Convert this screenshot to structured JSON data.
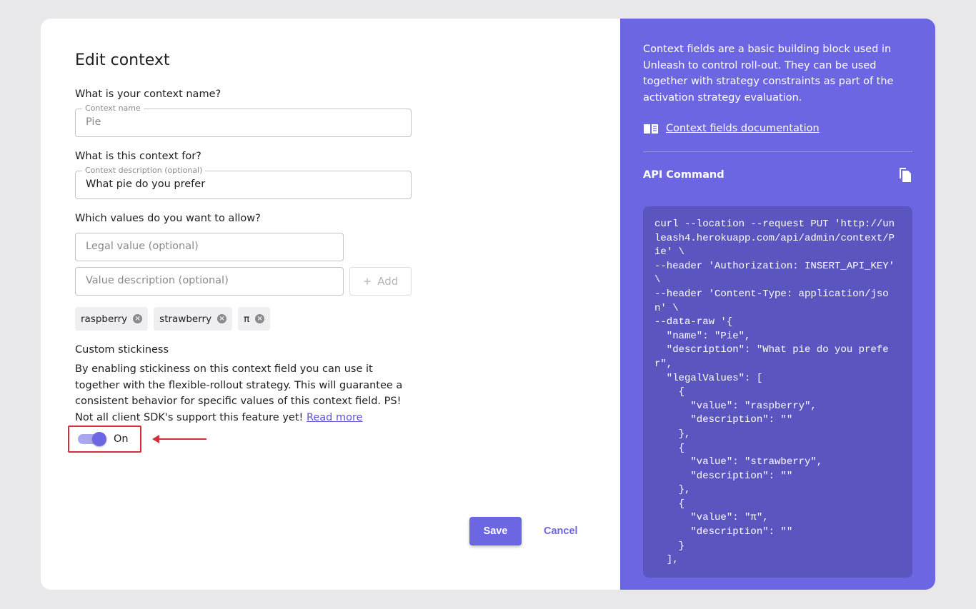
{
  "title": "Edit context",
  "name_question": "What is your context name?",
  "name_field": {
    "label": "Context name",
    "value": "Pie"
  },
  "purpose_question": "What is this context for?",
  "description_field": {
    "label": "Context description (optional)",
    "value": "What pie do you prefer"
  },
  "values_question": "Which values do you want to allow?",
  "legal_value_placeholder": "Legal value (optional)",
  "value_description_placeholder": "Value description (optional)",
  "add_label": "Add",
  "chips": [
    "raspberry",
    "strawberry",
    "π"
  ],
  "stickiness": {
    "title": "Custom stickiness",
    "text": "By enabling stickiness on this context field you can use it together with the flexible-rollout strategy. This will guarantee a consistent behavior for specific values of this context field. PS! Not all client SDK's support this feature yet!",
    "link": "Read more",
    "toggle_label": "On",
    "enabled": true
  },
  "save_label": "Save",
  "cancel_label": "Cancel",
  "sidebar": {
    "description": "Context fields are a basic building block used in Unleash to control roll-out. They can be used together with strategy constraints as part of the activation strategy evaluation.",
    "doc_link": "Context fields documentation",
    "api_title": "API Command",
    "code_lines": [
      "curl --location --request PUT 'http://un",
      "leash4.herokuapp.com/api/admin/context/P",
      "ie' \\",
      "--header 'Authorization: INSERT_API_KEY'",
      "\\",
      "--header 'Content-Type: application/jso",
      "n' \\",
      "--data-raw '{",
      "  \"name\": \"Pie\",",
      "  \"description\": \"What pie do you prefe",
      "r\",",
      "  \"legalValues\": [",
      "    {",
      "      \"value\": \"raspberry\",",
      "      \"description\": \"\"",
      "    },",
      "    {",
      "      \"value\": \"strawberry\",",
      "      \"description\": \"\"",
      "    },",
      "    {",
      "      \"value\": \"π\",",
      "      \"description\": \"\"",
      "    }",
      "  ],"
    ]
  },
  "colors": {
    "accent": "#6c66e3",
    "code_bg": "#5b55c0",
    "highlight": "#d32f3a"
  }
}
